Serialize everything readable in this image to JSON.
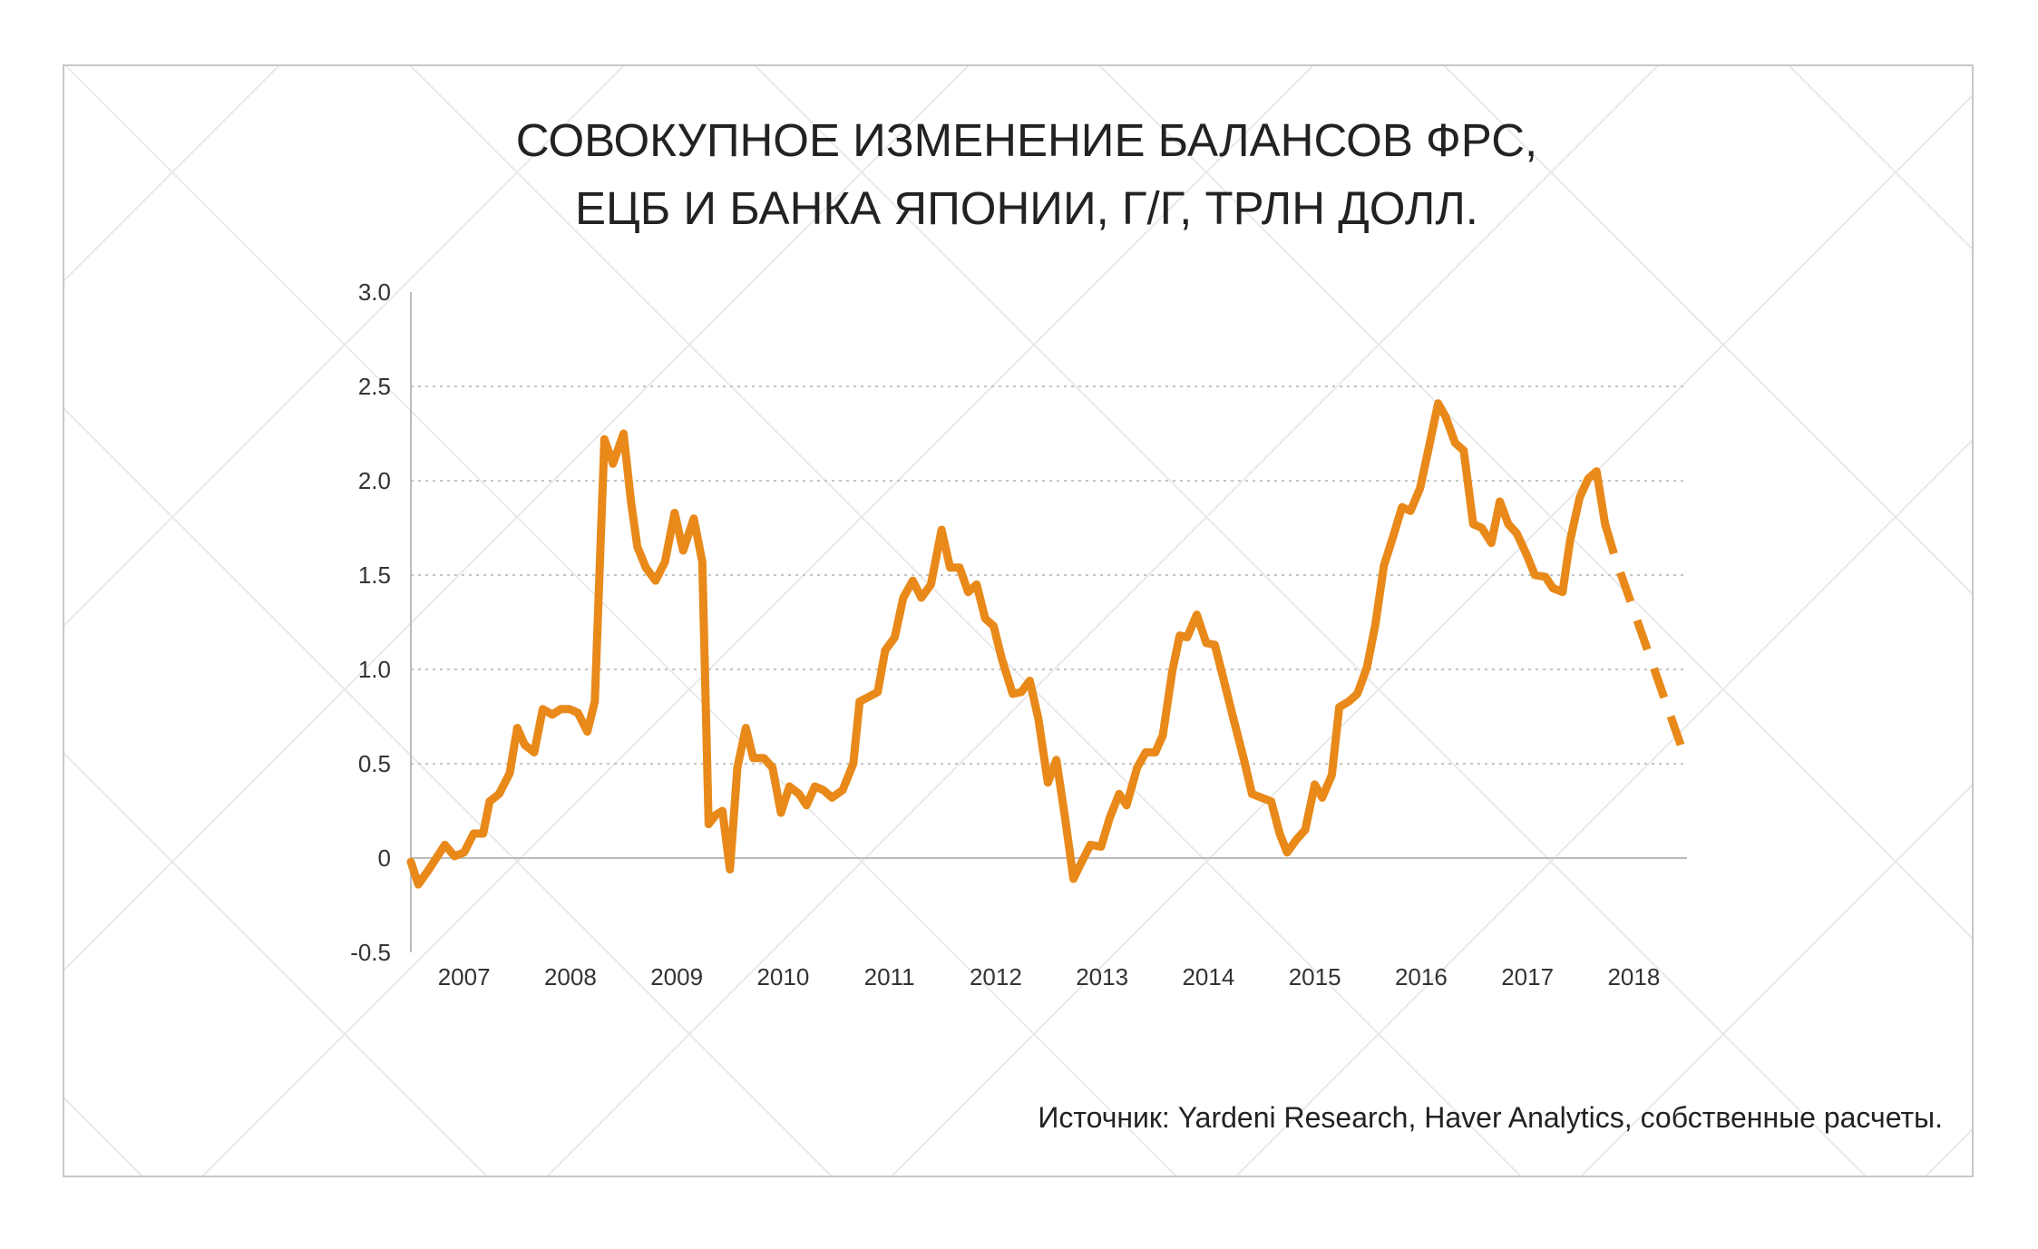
{
  "chart_data": {
    "type": "line",
    "title": [
      "СОВОКУПНОЕ ИЗМЕНЕНИЕ БАЛАНСОВ ФРС,",
      "ЕЦБ И БАНКА ЯПОНИИ, Г/Г, ТРЛН ДОЛЛ."
    ],
    "source": "Источник: Yardeni Research, Haver Analytics, собственные расчеты.",
    "x": [
      2007.0,
      2007.07,
      2007.17,
      2007.32,
      2007.41,
      2007.5,
      2007.59,
      2007.68,
      2007.74,
      2007.83,
      2007.93,
      2008.0,
      2008.07,
      2008.16,
      2008.24,
      2008.33,
      2008.41,
      2008.49,
      2008.57,
      2008.66,
      2008.73,
      2008.82,
      2008.9,
      2009.0,
      2009.07,
      2009.13,
      2009.21,
      2009.3,
      2009.39,
      2009.48,
      2009.56,
      2009.66,
      2009.74,
      2009.8,
      2009.87,
      2009.93,
      2010.0,
      2010.07,
      2010.15,
      2010.22,
      2010.32,
      2010.4,
      2010.48,
      2010.56,
      2010.65,
      2010.72,
      2010.8,
      2010.88,
      2010.96,
      2011.06,
      2011.16,
      2011.22,
      2011.29,
      2011.39,
      2011.46,
      2011.55,
      2011.63,
      2011.72,
      2011.8,
      2011.89,
      2011.99,
      2012.07,
      2012.16,
      2012.24,
      2012.32,
      2012.4,
      2012.48,
      2012.56,
      2012.66,
      2012.74,
      2012.82,
      2012.9,
      2012.99,
      2013.07,
      2013.15,
      2013.23,
      2013.3,
      2013.39,
      2013.49,
      2013.57,
      2013.66,
      2013.73,
      2013.83,
      2013.91,
      2014.0,
      2014.07,
      2014.16,
      2014.23,
      2014.3,
      2014.39,
      2014.48,
      2014.56,
      2014.65,
      2014.73,
      2014.83,
      2014.91,
      2015.0,
      2015.09,
      2015.17,
      2015.24,
      2015.33,
      2015.41,
      2015.5,
      2015.57,
      2015.66,
      2015.73,
      2015.82,
      2015.9,
      2015.99,
      2016.07,
      2016.15,
      2016.24,
      2016.32,
      2016.4,
      2016.49,
      2016.57,
      2016.66,
      2016.73,
      2016.82,
      2016.9,
      2016.99,
      2017.07,
      2017.16,
      2017.24,
      2017.32,
      2017.4,
      2017.49,
      2017.57,
      2017.67,
      2017.74,
      2017.83,
      2017.9,
      2017.99,
      2018.07,
      2018.15,
      2018.23,
      2018.32,
      2018.94
    ],
    "series": [
      {
        "color": "#e8891a",
        "dashed": false,
        "values": [
          -0.02,
          -0.14,
          -0.06,
          0.07,
          0.01,
          0.03,
          0.13,
          0.13,
          0.3,
          0.34,
          0.45,
          0.69,
          0.6,
          0.56,
          0.79,
          0.76,
          0.79,
          0.79,
          0.77,
          0.67,
          0.83,
          2.22,
          2.09,
          2.25,
          1.89,
          1.65,
          1.54,
          1.47,
          1.57,
          1.83,
          1.63,
          1.8,
          1.57,
          0.18,
          0.23,
          0.25,
          -0.06,
          0.48,
          0.69,
          0.53,
          0.53,
          0.48,
          0.24,
          0.38,
          0.34,
          0.28,
          0.38,
          0.36,
          0.32,
          0.36,
          0.5,
          0.83,
          0.85,
          0.88,
          1.1,
          1.17,
          1.38,
          1.47,
          1.38,
          1.45,
          1.74,
          1.54,
          1.54,
          1.41,
          1.45,
          1.27,
          1.23,
          1.05,
          0.87,
          0.88,
          0.94,
          0.74,
          0.4,
          0.52,
          0.22,
          -0.11,
          -0.03,
          0.07,
          0.06,
          0.21,
          0.34,
          0.28,
          0.48,
          0.56,
          0.56,
          0.65,
          0.99,
          1.18,
          1.17,
          1.29,
          1.14,
          1.13,
          0.93,
          0.75,
          0.53,
          0.34,
          0.32,
          0.3,
          0.13,
          0.03,
          0.1,
          0.15,
          0.39,
          0.32,
          0.44,
          0.8,
          0.83,
          0.87,
          1.01,
          1.24,
          1.55,
          1.71,
          1.86,
          1.84,
          1.96,
          2.17,
          2.41,
          2.34,
          2.2,
          2.16,
          1.77,
          1.75,
          1.67,
          1.89,
          1.77,
          1.72,
          1.61,
          1.5,
          1.49,
          1.43,
          1.41,
          1.68,
          1.91,
          2.01,
          2.05,
          1.77,
          null,
          null
        ]
      },
      {
        "color": "#e8891a",
        "dashed": true,
        "values": [
          null,
          null,
          null,
          null,
          null,
          null,
          null,
          null,
          null,
          null,
          null,
          null,
          null,
          null,
          null,
          null,
          null,
          null,
          null,
          null,
          null,
          null,
          null,
          null,
          null,
          null,
          null,
          null,
          null,
          null,
          null,
          null,
          null,
          null,
          null,
          null,
          null,
          null,
          null,
          null,
          null,
          null,
          null,
          null,
          null,
          null,
          null,
          null,
          null,
          null,
          null,
          null,
          null,
          null,
          null,
          null,
          null,
          null,
          null,
          null,
          null,
          null,
          null,
          null,
          null,
          null,
          null,
          null,
          null,
          null,
          null,
          null,
          null,
          null,
          null,
          null,
          null,
          null,
          null,
          null,
          null,
          null,
          null,
          null,
          null,
          null,
          null,
          null,
          null,
          null,
          null,
          null,
          null,
          null,
          null,
          null,
          null,
          null,
          null,
          null,
          null,
          null,
          null,
          null,
          null,
          null,
          null,
          null,
          null,
          null,
          null,
          null,
          null,
          null,
          null,
          null,
          null,
          null,
          null,
          null,
          null,
          null,
          null,
          null,
          null,
          null,
          null,
          null,
          null,
          null,
          null,
          null,
          null,
          null,
          null,
          1.77,
          1.6,
          0.6
        ]
      }
    ],
    "xlim": [
      2007,
      2019
    ],
    "xticks": [
      2007,
      2008,
      2009,
      2010,
      2011,
      2012,
      2013,
      2014,
      2015,
      2016,
      2017,
      2018
    ],
    "ylim": [
      -0.5,
      3.0
    ],
    "yticks": [
      -0.5,
      0,
      0.5,
      {
        "value": 1.0,
        "label": "1.0"
      },
      1.5,
      {
        "value": 2.0,
        "label": "2.0"
      },
      2.5,
      {
        "value": 3.0,
        "label": "3.0"
      }
    ],
    "grid": true
  }
}
